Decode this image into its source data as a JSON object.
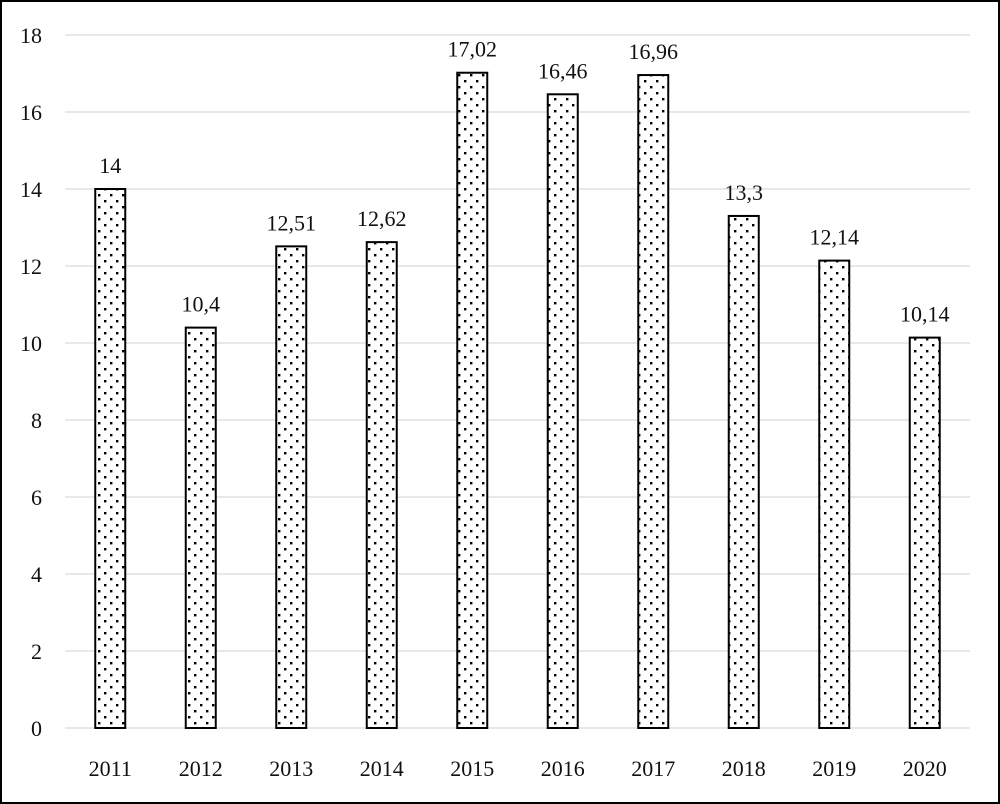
{
  "chart_data": {
    "type": "bar",
    "categories": [
      "2011",
      "2012",
      "2013",
      "2014",
      "2015",
      "2016",
      "2017",
      "2018",
      "2019",
      "2020"
    ],
    "values": [
      14,
      10.4,
      12.51,
      12.62,
      17.02,
      16.46,
      16.96,
      13.3,
      12.14,
      10.14
    ],
    "data_labels": [
      "14",
      "10,4",
      "12,51",
      "12,62",
      "17,02",
      "16,46",
      "16,96",
      "13,3",
      "12,14",
      "10,14"
    ],
    "title": "",
    "xlabel": "",
    "ylabel": "",
    "ylim": [
      0,
      18
    ],
    "yticks": [
      "0",
      "2",
      "4",
      "6",
      "8",
      "10",
      "12",
      "14",
      "16",
      "18"
    ],
    "grid": "horizontal",
    "bar_fill": "dotted pattern",
    "colors": {
      "bar_fill": "#ffffff",
      "bar_stroke": "#000000",
      "dots": "#000000",
      "grid": "#d9d9d9",
      "border": "#000000"
    }
  }
}
